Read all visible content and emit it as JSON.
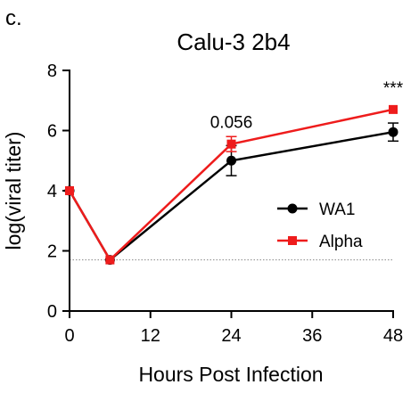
{
  "panel_label": "c.",
  "chart_data": {
    "type": "line",
    "title": "Calu-3 2b4",
    "xlabel": "Hours Post Infection",
    "ylabel": "log(viral titer)",
    "xlim": [
      0,
      48
    ],
    "ylim": [
      0,
      8
    ],
    "xticks": [
      0,
      12,
      24,
      36,
      48
    ],
    "yticks": [
      0,
      2,
      4,
      6,
      8
    ],
    "grid": false,
    "legend_position": "right",
    "series": [
      {
        "name": "WA1",
        "color": "#000000",
        "marker": "circle",
        "x": [
          0,
          6,
          24,
          48
        ],
        "y": [
          4.0,
          1.7,
          5.0,
          5.95
        ],
        "error": [
          0.05,
          0.05,
          0.5,
          0.3
        ]
      },
      {
        "name": "Alpha",
        "color": "#ee1c1c",
        "marker": "square",
        "x": [
          0,
          6,
          24,
          48
        ],
        "y": [
          4.0,
          1.7,
          5.55,
          6.7
        ],
        "error": [
          0.05,
          0.05,
          0.25,
          0.05
        ]
      }
    ],
    "reference_line": {
      "y": 1.7,
      "style": "dotted"
    },
    "annotations": [
      {
        "text": "0.056",
        "x": 24,
        "y": 5.55
      },
      {
        "text": "***",
        "x": 48,
        "y": 6.7
      }
    ]
  }
}
